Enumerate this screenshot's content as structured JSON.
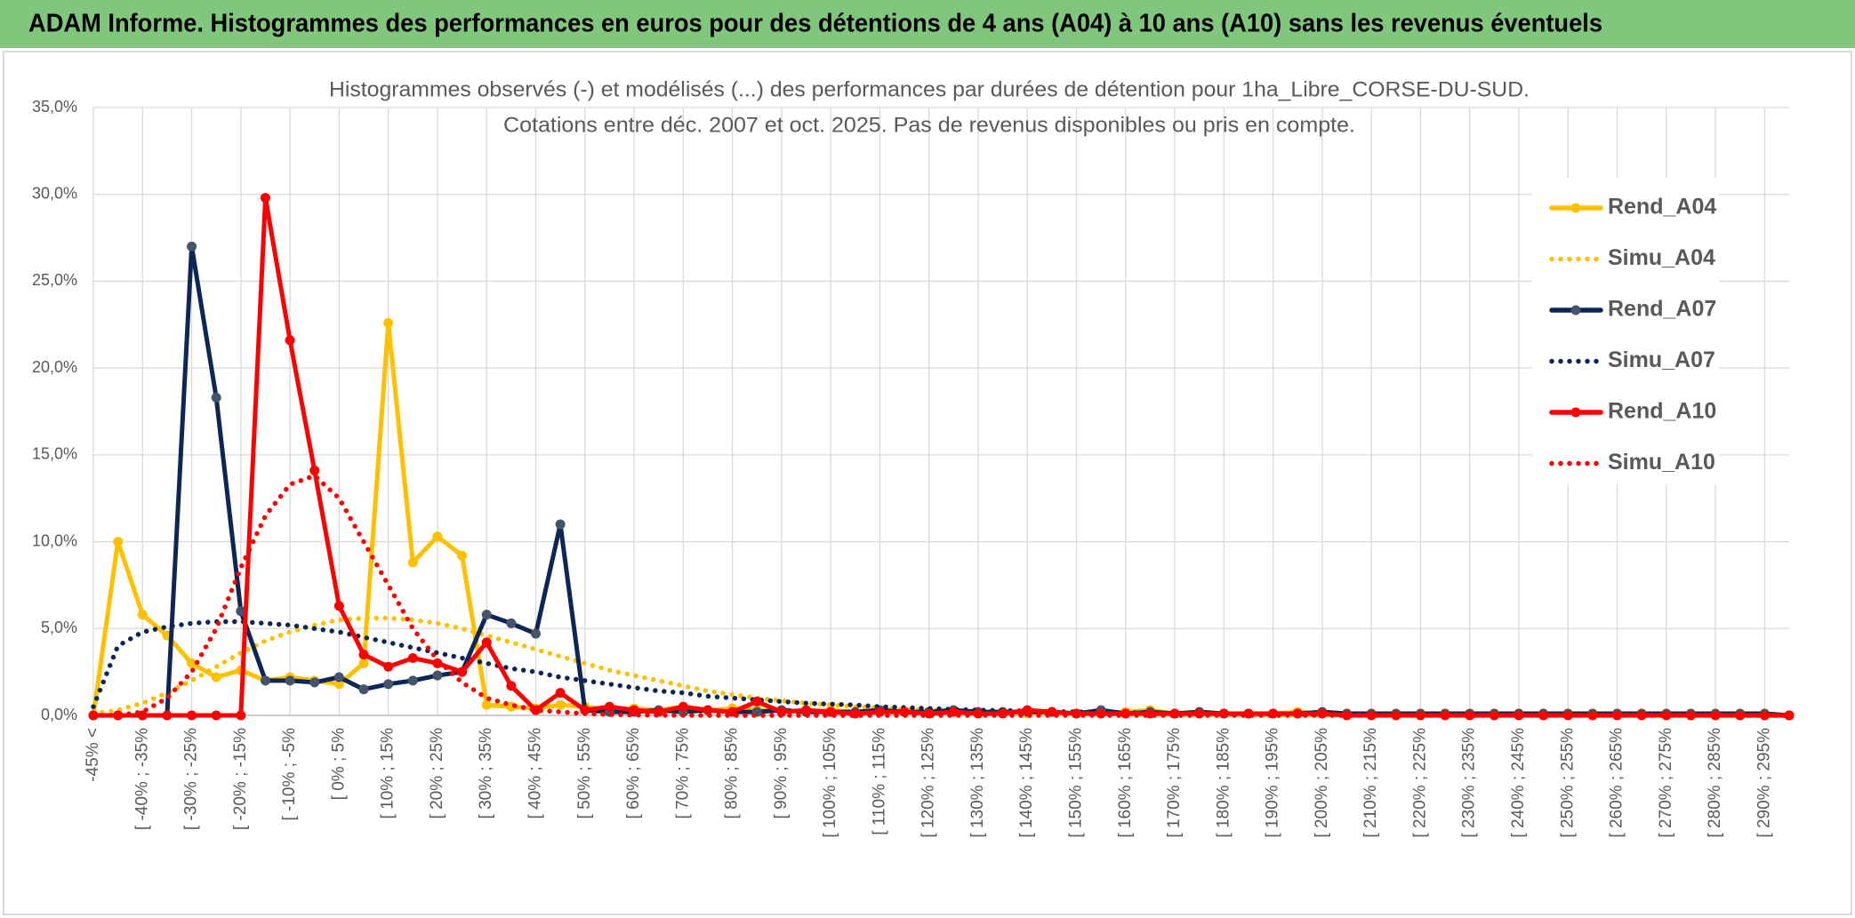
{
  "header": {
    "title": "ADAM Informe. Histogrammes des performances en euros pour des détentions de 4 ans (A04) à 10 ans (A10) sans les revenus éventuels"
  },
  "chart_data": {
    "type": "line",
    "title": "Histogrammes observés (-) et modélisés (...) des performances par durées de détention pour 1ha_Libre_CORSE-DU-SUD.",
    "subtitle": "Cotations entre déc. 2007 et oct. 2025. Pas de revenus disponibles ou pris en compte.",
    "categories": [
      "-45% <",
      null,
      "[ -40% ; -35%",
      null,
      "[ -30% ; -25%",
      null,
      "[ -20% ; -15%",
      null,
      "[ -10% ; -5%",
      null,
      "[ 0% ; 5%",
      null,
      "[ 10% ; 15%",
      null,
      "[ 20% ; 25%",
      null,
      "[ 30% ; 35%",
      null,
      "[ 40% ; 45%",
      null,
      "[ 50% ; 55%",
      null,
      "[ 60% ; 65%",
      null,
      "[ 70% ; 75%",
      null,
      "[ 80% ; 85%",
      null,
      "[ 90% ; 95%",
      null,
      "[ 100% ; 105%",
      null,
      "[ 110% ; 115%",
      null,
      "[ 120% ; 125%",
      null,
      "[ 130% ; 135%",
      null,
      "[ 140% ; 145%",
      null,
      "[ 150% ; 155%",
      null,
      "[ 160% ; 165%",
      null,
      "[ 170% ; 175%",
      null,
      "[ 180% ; 185%",
      null,
      "[ 190% ; 195%",
      null,
      "[ 200% ; 205%",
      null,
      "[ 210% ; 215%",
      null,
      "[ 220% ; 225%",
      null,
      "[ 230% ; 235%",
      null,
      "[ 240% ; 245%",
      null,
      "[ 250% ; 255%",
      null,
      "[ 260% ; 265%",
      null,
      "[ 270% ; 275%",
      null,
      "[ 280% ; 285%",
      null,
      "[ 290% ; 295%",
      null
    ],
    "series": [
      {
        "name": "Rend_A04",
        "color": "#ffc000",
        "style": "solid",
        "values": [
          0,
          10,
          5.8,
          4.6,
          3,
          2.2,
          2.6,
          2,
          2.2,
          2,
          1.8,
          3,
          22.6,
          8.8,
          10.3,
          9.2,
          0.6,
          0.5,
          0.4,
          0.6,
          0.5,
          0.3,
          0.4,
          0.3,
          0.5,
          0.3,
          0.4,
          0.3,
          0.3,
          0.2,
          0.3,
          0.2,
          0.3,
          0.2,
          0.2,
          0.2,
          0.1,
          0.2,
          0.1,
          0.2,
          0.1,
          0.1,
          0.2,
          0.3,
          0.1,
          0.2,
          0.1,
          0.1,
          0.1,
          0.2,
          0.1,
          0.1,
          0.1,
          0.1,
          0.1,
          0.1,
          0.1,
          0.1,
          0.1,
          0.1,
          0.1,
          0.1,
          0.1,
          0.1,
          0.1,
          0,
          0,
          0,
          0,
          0
        ]
      },
      {
        "name": "Simu_A04",
        "color": "#ffc000",
        "style": "dotted",
        "values": [
          0.1,
          0.3,
          0.7,
          1.3,
          2,
          2.8,
          3.6,
          4.3,
          4.8,
          5.2,
          5.5,
          5.6,
          5.6,
          5.5,
          5.3,
          5,
          4.6,
          4.2,
          3.8,
          3.4,
          3,
          2.6,
          2.3,
          2,
          1.7,
          1.4,
          1.2,
          1,
          0.85,
          0.7,
          0.6,
          0.5,
          0.42,
          0.35,
          0.3,
          0.25,
          0.2,
          0.17,
          0.14,
          0.12,
          0.1,
          0.08,
          0.07,
          0.06,
          0.05,
          0.04,
          0.03,
          0.03,
          0.02,
          0.02,
          0.02,
          0.01,
          0.01,
          0.01,
          0.01,
          0.01,
          0,
          0,
          0,
          0,
          0,
          0,
          0,
          0,
          0,
          0,
          0,
          0,
          0,
          0
        ]
      },
      {
        "name": "Rend_A07",
        "color": "#0d2656",
        "marker": "#44546a",
        "style": "solid",
        "values": [
          0,
          0,
          0,
          0,
          27,
          18.3,
          6,
          2,
          2,
          1.9,
          2.2,
          1.5,
          1.8,
          2,
          2.3,
          2.5,
          5.8,
          5.3,
          4.7,
          11,
          0.3,
          0.2,
          0.2,
          0.3,
          0.2,
          0.3,
          0.2,
          0.2,
          0.3,
          0.2,
          0.2,
          0.2,
          0.3,
          0.2,
          0.2,
          0.3,
          0.2,
          0.2,
          0.2,
          0.2,
          0.1,
          0.3,
          0.1,
          0.2,
          0.1,
          0.2,
          0.1,
          0.1,
          0.1,
          0.1,
          0.2,
          0.1,
          0.1,
          0.1,
          0.1,
          0.1,
          0.1,
          0.1,
          0.1,
          0.1,
          0.1,
          0.1,
          0.1,
          0.1,
          0.1,
          0.1,
          0.1,
          0.1,
          0.1,
          0
        ]
      },
      {
        "name": "Simu_A07",
        "color": "#0d2656",
        "style": "dotted",
        "values": [
          0.5,
          4,
          4.8,
          5.1,
          5.3,
          5.4,
          5.4,
          5.3,
          5.2,
          5,
          4.8,
          4.5,
          4.2,
          3.9,
          3.6,
          3.3,
          3,
          2.7,
          2.5,
          2.2,
          2,
          1.8,
          1.6,
          1.4,
          1.3,
          1.1,
          1,
          0.9,
          0.8,
          0.7,
          0.65,
          0.6,
          0.5,
          0.45,
          0.4,
          0.35,
          0.3,
          0.28,
          0.25,
          0.22,
          0.2,
          0.18,
          0.16,
          0.14,
          0.12,
          0.1,
          0.09,
          0.08,
          0.07,
          0.06,
          0.05,
          0.05,
          0.04,
          0.04,
          0.03,
          0.03,
          0.02,
          0.02,
          0.02,
          0.02,
          0.01,
          0.01,
          0.01,
          0.01,
          0.01,
          0.01,
          0.01,
          0,
          0,
          0
        ]
      },
      {
        "name": "Rend_A10",
        "color": "#ff0000",
        "style": "solid",
        "values": [
          0,
          0,
          0,
          0,
          0,
          0,
          0,
          29.8,
          21.6,
          14.1,
          6.3,
          3.5,
          2.8,
          3.3,
          3,
          2.5,
          4.2,
          1.7,
          0.3,
          1.3,
          0.3,
          0.5,
          0.3,
          0.2,
          0.5,
          0.3,
          0.2,
          0.8,
          0.2,
          0.3,
          0.2,
          0.1,
          0.2,
          0.2,
          0.1,
          0.2,
          0.1,
          0.1,
          0.3,
          0.2,
          0.1,
          0.1,
          0.1,
          0.1,
          0.1,
          0.1,
          0.1,
          0.1,
          0.1,
          0.1,
          0.1,
          0,
          0,
          0,
          0,
          0,
          0,
          0,
          0,
          0,
          0,
          0,
          0,
          0,
          0,
          0,
          0,
          0,
          0,
          0
        ]
      },
      {
        "name": "Simu_A10",
        "color": "#ff0000",
        "style": "dotted",
        "values": [
          0,
          0,
          0.2,
          1,
          2.5,
          5,
          8.5,
          11.5,
          13.3,
          13.8,
          12.5,
          10,
          7.5,
          5,
          3.2,
          1.9,
          1,
          0.6,
          0.3,
          0.2,
          0.1,
          0.05,
          0.02,
          0.01,
          0,
          0,
          0,
          0,
          0,
          0,
          0,
          0,
          0,
          0,
          0,
          0,
          0,
          0,
          0,
          0,
          0,
          0,
          0,
          0,
          0,
          0,
          0,
          0,
          0,
          0,
          0,
          0,
          0,
          0,
          0,
          0,
          0,
          0,
          0,
          0,
          0,
          0,
          0,
          0,
          0,
          0,
          0,
          0,
          0,
          0
        ]
      }
    ],
    "ylim": [
      0,
      35
    ],
    "yticks": [
      {
        "value": 0,
        "label": "0,0%"
      },
      {
        "value": 5,
        "label": "5,0%"
      },
      {
        "value": 10,
        "label": "10,0%"
      },
      {
        "value": 15,
        "label": "15,0%"
      },
      {
        "value": 20,
        "label": "20,0%"
      },
      {
        "value": 25,
        "label": "25,0%"
      },
      {
        "value": 30,
        "label": "30,0%"
      },
      {
        "value": 35,
        "label": "35,0%"
      }
    ],
    "grid": true,
    "legend": "right"
  }
}
